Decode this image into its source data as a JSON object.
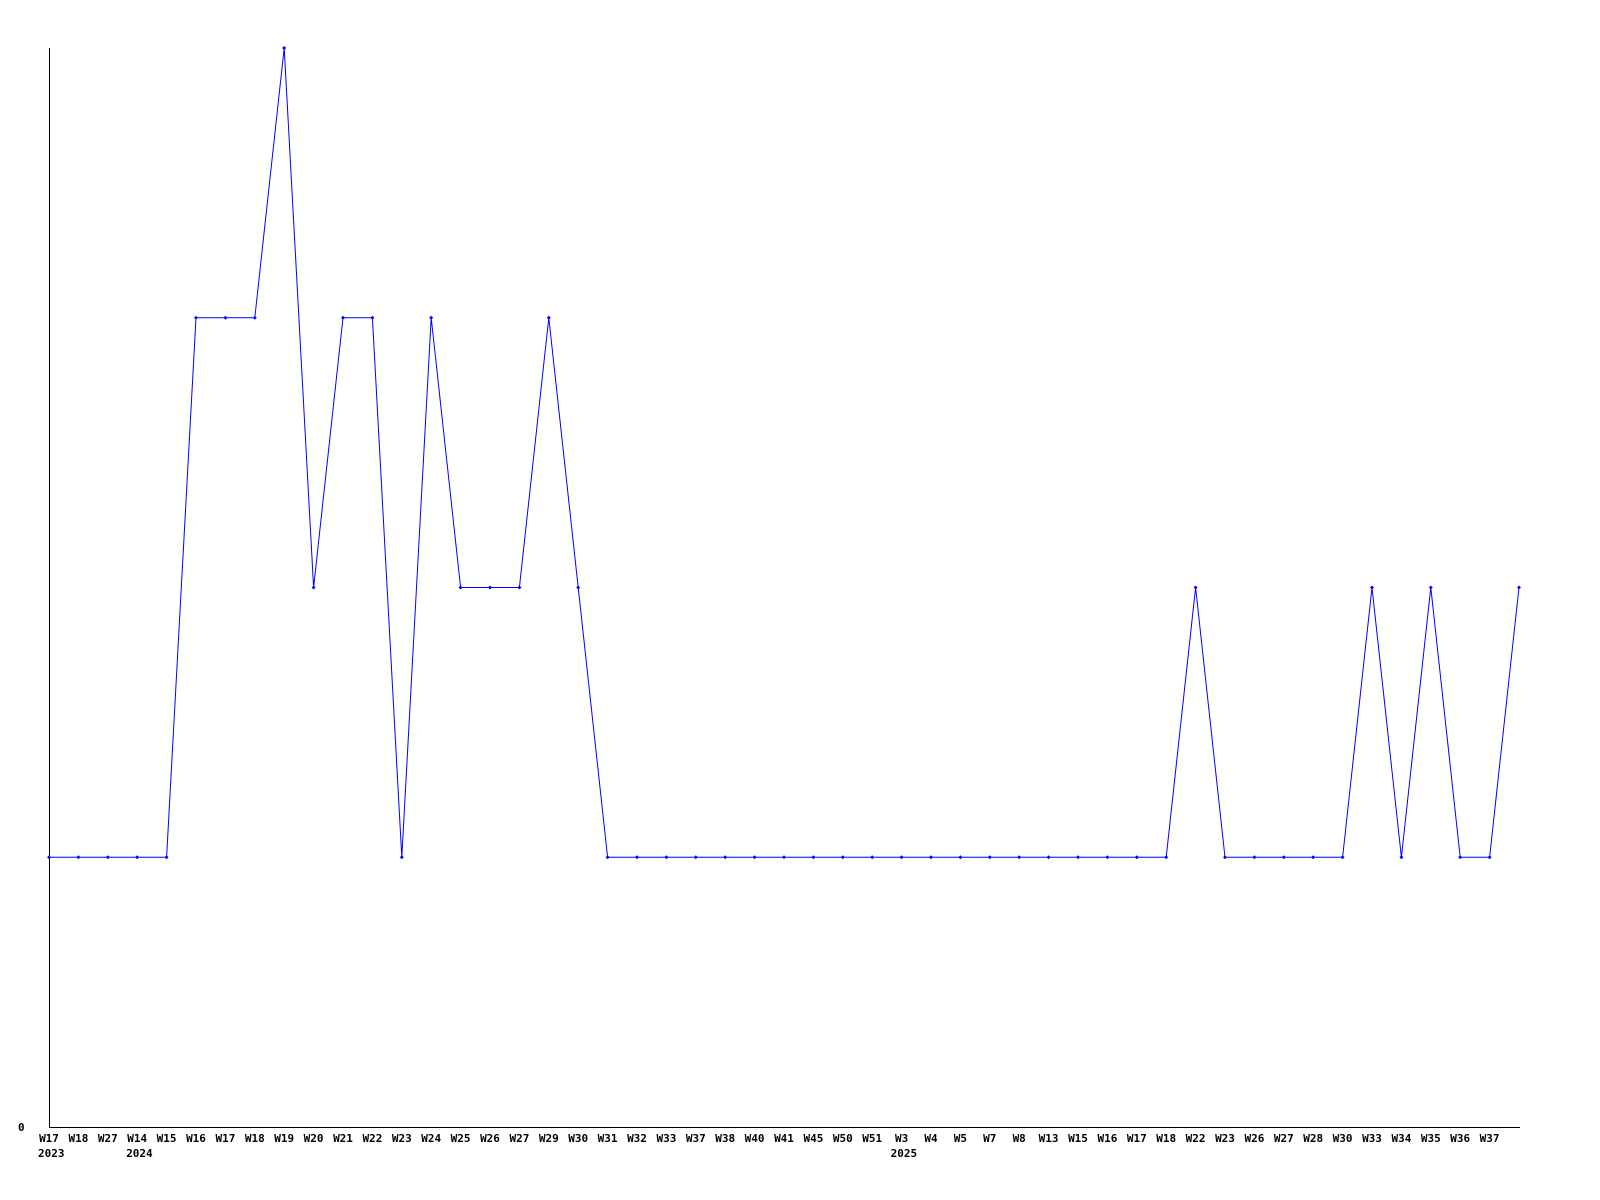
{
  "chart_data": {
    "type": "line",
    "title": "",
    "xlabel": "",
    "ylabel": "",
    "ylim": [
      0,
      4
    ],
    "y_tick_labels": [
      "0"
    ],
    "grid": false,
    "legend": "none",
    "line_color": "#0000ff",
    "x_labels": [
      "W17",
      "W18",
      "W27",
      "W14",
      "W15",
      "W16",
      "W17",
      "W18",
      "W19",
      "W20",
      "W21",
      "W22",
      "W23",
      "W24",
      "W25",
      "W26",
      "W27",
      "W29",
      "W30",
      "W31",
      "W32",
      "W33",
      "W37",
      "W38",
      "W40",
      "W41",
      "W45",
      "W50",
      "W51",
      "W3",
      "W4",
      "W5",
      "W7",
      "W8",
      "W13",
      "W15",
      "W16",
      "W17",
      "W18",
      "W22",
      "W23",
      "W26",
      "W27",
      "W28",
      "W30",
      "W33",
      "W34",
      "W35",
      "W36",
      "W37",
      ""
    ],
    "year_labels": [
      {
        "index": 0,
        "label": "2023"
      },
      {
        "index": 3,
        "label": "2024"
      },
      {
        "index": 29,
        "label": "2025"
      }
    ],
    "series": [
      {
        "values": [
          1,
          1,
          1,
          1,
          1,
          3,
          3,
          3,
          4,
          2,
          3,
          3,
          1,
          3,
          2,
          2,
          2,
          3,
          2,
          1,
          1,
          1,
          1,
          1,
          1,
          1,
          1,
          1,
          1,
          1,
          1,
          1,
          1,
          1,
          1,
          1,
          1,
          1,
          1,
          2,
          1,
          1,
          1,
          1,
          1,
          2,
          1,
          2,
          1,
          1,
          2
        ]
      }
    ]
  }
}
